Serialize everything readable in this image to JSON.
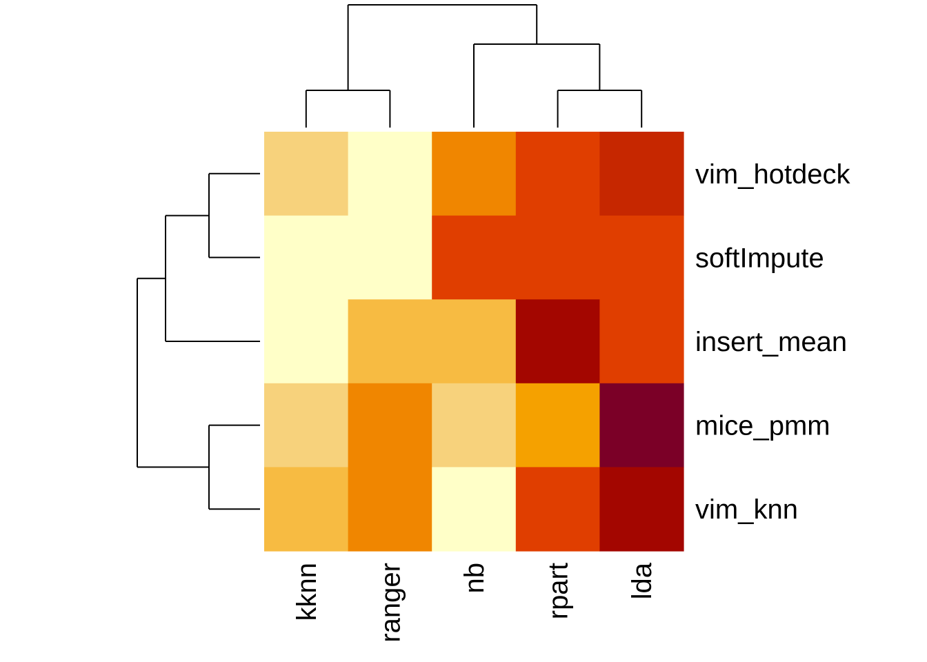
{
  "chart_data": {
    "type": "heatmap",
    "title": "",
    "xlabel": "",
    "ylabel": "",
    "columns": [
      "kknn",
      "ranger",
      "nb",
      "rpart",
      "lda"
    ],
    "rows": [
      "vim_hotdeck",
      "softImpute",
      "insert_mean",
      "mice_pmm",
      "vim_knn"
    ],
    "values": [
      [
        3,
        1,
        6,
        8,
        9
      ],
      [
        1,
        1,
        8,
        8,
        8
      ],
      [
        1,
        4,
        4,
        10,
        8
      ],
      [
        3,
        7,
        3,
        5,
        11
      ],
      [
        4,
        6,
        1,
        8,
        10
      ]
    ],
    "color_scale": {
      "palette": [
        "#FFFFC8",
        "#FAE39C",
        "#F7D27C",
        "#F7BB42",
        "#F5A100",
        "#F08600",
        "#E03E00",
        "#C62700",
        "#A30600",
        "#7B0027"
      ],
      "low": 1,
      "high": 11
    },
    "row_dendrogram": "(((vim_hotdeck,softImpute),insert_mean),(mice_pmm,vim_knn))",
    "col_dendrogram": "((kknn,ranger),(nb,(rpart,lda)))",
    "grid": false,
    "legend": "none"
  }
}
